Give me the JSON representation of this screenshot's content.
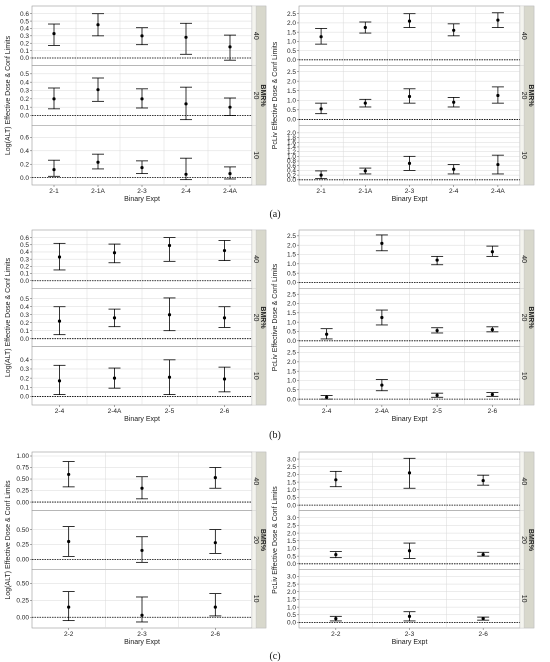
{
  "chart_data": [
    {
      "type": "scatter",
      "panel": "a-left",
      "xlabel": "Binary Expt",
      "ylabel": "Log(ALT) Effective Dose & Conf Limits",
      "strip_title": "BMR%",
      "categories": [
        "2-1",
        "2-1A",
        "2-3",
        "2-4",
        "2-4A"
      ],
      "facets": [
        {
          "label": "40",
          "ylim": [
            -0.05,
            0.65
          ],
          "ticks": [
            "0.0",
            "0.1",
            "0.2",
            "0.3",
            "0.4",
            "0.5",
            "0.6"
          ],
          "points": [
            {
              "y": 0.33,
              "lo": 0.17,
              "hi": 0.46
            },
            {
              "y": 0.45,
              "lo": 0.3,
              "hi": 0.6
            },
            {
              "y": 0.3,
              "lo": 0.18,
              "hi": 0.41
            },
            {
              "y": 0.28,
              "lo": 0.05,
              "hi": 0.47
            },
            {
              "y": 0.15,
              "lo": -0.03,
              "hi": 0.31
            }
          ]
        },
        {
          "label": "20",
          "ylim": [
            -0.07,
            0.55
          ],
          "ticks": [
            "0.0",
            "0.1",
            "0.2",
            "0.3",
            "0.4",
            "0.5"
          ],
          "points": [
            {
              "y": 0.2,
              "lo": 0.08,
              "hi": 0.33
            },
            {
              "y": 0.31,
              "lo": 0.17,
              "hi": 0.45
            },
            {
              "y": 0.2,
              "lo": 0.09,
              "hi": 0.32
            },
            {
              "y": 0.14,
              "lo": -0.05,
              "hi": 0.34
            },
            {
              "y": 0.1,
              "lo": 0.0,
              "hi": 0.21
            }
          ]
        },
        {
          "label": "10",
          "ylim": [
            -0.05,
            0.72
          ],
          "ticks": [
            "0.0",
            "0.2",
            "0.4",
            "0.6"
          ],
          "points": [
            {
              "y": 0.12,
              "lo": 0.02,
              "hi": 0.26
            },
            {
              "y": 0.23,
              "lo": 0.13,
              "hi": 0.35
            },
            {
              "y": 0.15,
              "lo": 0.06,
              "hi": 0.25
            },
            {
              "y": 0.05,
              "lo": -0.03,
              "hi": 0.29
            },
            {
              "y": 0.06,
              "lo": -0.02,
              "hi": 0.16
            }
          ]
        }
      ]
    },
    {
      "type": "scatter",
      "panel": "a-right",
      "xlabel": "Binary Expt",
      "ylabel": "PcLiv Effective Dose & Conf Limits",
      "strip_title": "BMR%",
      "categories": [
        "2-1",
        "2-1A",
        "2-3",
        "2-4",
        "2-4A"
      ],
      "facets": [
        {
          "label": "40",
          "ylim": [
            -0.1,
            2.7
          ],
          "ticks": [
            "0.0",
            "0.5",
            "1.0",
            "1.5",
            "2.0",
            "2.5"
          ],
          "points": [
            {
              "y": 1.25,
              "lo": 0.85,
              "hi": 1.7
            },
            {
              "y": 1.75,
              "lo": 1.45,
              "hi": 2.05
            },
            {
              "y": 2.1,
              "lo": 1.75,
              "hi": 2.5
            },
            {
              "y": 1.6,
              "lo": 1.3,
              "hi": 1.95
            },
            {
              "y": 2.15,
              "lo": 1.75,
              "hi": 2.55
            }
          ]
        },
        {
          "label": "20",
          "ylim": [
            -0.1,
            2.6
          ],
          "ticks": [
            "0.0",
            "0.5",
            "1.0",
            "1.5",
            "2.0",
            "2.5"
          ],
          "points": [
            {
              "y": 0.55,
              "lo": 0.3,
              "hi": 0.85
            },
            {
              "y": 0.85,
              "lo": 0.65,
              "hi": 1.05
            },
            {
              "y": 1.2,
              "lo": 0.85,
              "hi": 1.6
            },
            {
              "y": 0.9,
              "lo": 0.65,
              "hi": 1.15
            },
            {
              "y": 1.25,
              "lo": 0.85,
              "hi": 1.7
            }
          ]
        },
        {
          "label": "10",
          "ylim": [
            -0.05,
            2.15
          ],
          "ticks": [
            "0.0",
            "0.2",
            "0.4",
            "0.6",
            "0.8",
            "1.0",
            "1.2",
            "1.4",
            "1.6",
            "1.8",
            "2.0"
          ],
          "points": [
            {
              "y": 0.2,
              "lo": 0.05,
              "hi": 0.38
            },
            {
              "y": 0.38,
              "lo": 0.25,
              "hi": 0.5
            },
            {
              "y": 0.7,
              "lo": 0.4,
              "hi": 1.0
            },
            {
              "y": 0.45,
              "lo": 0.25,
              "hi": 0.65
            },
            {
              "y": 0.65,
              "lo": 0.25,
              "hi": 1.05
            }
          ]
        }
      ]
    },
    {
      "type": "scatter",
      "panel": "b-left",
      "xlabel": "Binary Expt",
      "ylabel": "Log(ALT) Effective Dose & Conf Limits",
      "strip_title": "BMR%",
      "categories": [
        "2-4",
        "2-4A",
        "2-5",
        "2-6"
      ],
      "facets": [
        {
          "label": "40",
          "ylim": [
            -0.05,
            0.65
          ],
          "ticks": [
            "0.0",
            "0.1",
            "0.2",
            "0.3",
            "0.4",
            "0.5",
            "0.6"
          ],
          "points": [
            {
              "y": 0.33,
              "lo": 0.15,
              "hi": 0.52
            },
            {
              "y": 0.39,
              "lo": 0.25,
              "hi": 0.51
            },
            {
              "y": 0.49,
              "lo": 0.27,
              "hi": 0.6
            },
            {
              "y": 0.42,
              "lo": 0.28,
              "hi": 0.56
            }
          ]
        },
        {
          "label": "20",
          "ylim": [
            -0.05,
            0.58
          ],
          "ticks": [
            "0.0",
            "0.1",
            "0.2",
            "0.3",
            "0.4",
            "0.5"
          ],
          "points": [
            {
              "y": 0.22,
              "lo": 0.05,
              "hi": 0.4
            },
            {
              "y": 0.26,
              "lo": 0.15,
              "hi": 0.37
            },
            {
              "y": 0.3,
              "lo": 0.1,
              "hi": 0.51
            },
            {
              "y": 0.26,
              "lo": 0.14,
              "hi": 0.4
            }
          ]
        },
        {
          "label": "10",
          "ylim": [
            -0.05,
            0.5
          ],
          "ticks": [
            "0.0",
            "0.1",
            "0.2",
            "0.3",
            "0.4"
          ],
          "points": [
            {
              "y": 0.17,
              "lo": 0.02,
              "hi": 0.34
            },
            {
              "y": 0.2,
              "lo": 0.09,
              "hi": 0.31
            },
            {
              "y": 0.21,
              "lo": 0.02,
              "hi": 0.4
            },
            {
              "y": 0.19,
              "lo": 0.05,
              "hi": 0.32
            }
          ]
        }
      ]
    },
    {
      "type": "scatter",
      "panel": "b-right",
      "xlabel": "Binary Expt",
      "ylabel": "PcLiv Effective Dose & Conf Limits",
      "strip_title": "BMR%",
      "categories": [
        "2-4",
        "2-4A",
        "2-5",
        "2-6"
      ],
      "facets": [
        {
          "label": "40",
          "ylim": [
            -0.1,
            2.6
          ],
          "ticks": [
            "0.0",
            "0.5",
            "1.0",
            "1.5",
            "2.0",
            "2.5"
          ],
          "points": [
            {
              "y": null,
              "lo": null,
              "hi": null
            },
            {
              "y": 2.1,
              "lo": 1.7,
              "hi": 2.55
            },
            {
              "y": 1.2,
              "lo": 0.95,
              "hi": 1.4
            },
            {
              "y": 1.65,
              "lo": 1.4,
              "hi": 1.95
            }
          ]
        },
        {
          "label": "20",
          "ylim": [
            -0.1,
            2.6
          ],
          "ticks": [
            "0.0",
            "0.5",
            "1.0",
            "1.5",
            "2.0",
            "2.5"
          ],
          "points": [
            {
              "y": 0.35,
              "lo": 0.1,
              "hi": 0.65
            },
            {
              "y": 1.25,
              "lo": 0.85,
              "hi": 1.65
            },
            {
              "y": 0.55,
              "lo": 0.42,
              "hi": 0.7
            },
            {
              "y": 0.6,
              "lo": 0.48,
              "hi": 0.75
            }
          ]
        },
        {
          "label": "10",
          "ylim": [
            -0.1,
            2.6
          ],
          "ticks": [
            "0.0",
            "0.5",
            "1.0",
            "1.5",
            "2.0",
            "2.5"
          ],
          "points": [
            {
              "y": 0.1,
              "lo": 0.0,
              "hi": 0.2
            },
            {
              "y": 0.75,
              "lo": 0.45,
              "hi": 1.05
            },
            {
              "y": 0.2,
              "lo": 0.1,
              "hi": 0.32
            },
            {
              "y": 0.25,
              "lo": 0.15,
              "hi": 0.35
            }
          ]
        }
      ]
    },
    {
      "type": "scatter",
      "panel": "c-left",
      "xlabel": "Binary Expt",
      "ylabel": "Log(ALT) Effective Dose & Conf Limits",
      "strip_title": "BMR%",
      "categories": [
        "2-2",
        "2-3",
        "2-6"
      ],
      "facets": [
        {
          "label": "40",
          "ylim": [
            -0.1,
            1.0
          ],
          "ticks": [
            "0.00",
            "0.25",
            "0.50",
            "0.75",
            "1.00"
          ],
          "points": [
            {
              "y": 0.6,
              "lo": 0.33,
              "hi": 0.88
            },
            {
              "y": 0.3,
              "lo": 0.07,
              "hi": 0.55
            },
            {
              "y": 0.53,
              "lo": 0.3,
              "hi": 0.75
            }
          ]
        },
        {
          "label": "20",
          "ylim": [
            -0.1,
            0.75
          ],
          "ticks": [
            "0.00",
            "0.25",
            "0.50"
          ],
          "points": [
            {
              "y": 0.3,
              "lo": 0.05,
              "hi": 0.55
            },
            {
              "y": 0.15,
              "lo": -0.05,
              "hi": 0.38
            },
            {
              "y": 0.28,
              "lo": 0.1,
              "hi": 0.5
            }
          ]
        },
        {
          "label": "10",
          "ylim": [
            -0.1,
            0.65
          ],
          "ticks": [
            "0.00",
            "0.25",
            "0.50"
          ],
          "points": [
            {
              "y": 0.15,
              "lo": -0.05,
              "hi": 0.38
            },
            {
              "y": 0.03,
              "lo": -0.07,
              "hi": 0.3
            },
            {
              "y": 0.15,
              "lo": 0.02,
              "hi": 0.35
            }
          ]
        }
      ]
    },
    {
      "type": "scatter",
      "panel": "c-right",
      "xlabel": "Binary Expt",
      "ylabel": "PcLiv Effective Dose & Conf Limits",
      "strip_title": "BMR%",
      "categories": [
        "2-2",
        "2-3",
        "2-6"
      ],
      "facets": [
        {
          "label": "40",
          "ylim": [
            -0.1,
            3.2
          ],
          "ticks": [
            "0.0",
            "0.5",
            "1.0",
            "1.5",
            "2.0",
            "2.5",
            "3.0"
          ],
          "points": [
            {
              "y": 1.65,
              "lo": 1.2,
              "hi": 2.2
            },
            {
              "y": 2.1,
              "lo": 1.1,
              "hi": 3.05
            },
            {
              "y": 1.6,
              "lo": 1.3,
              "hi": 1.95
            }
          ]
        },
        {
          "label": "20",
          "ylim": [
            -0.1,
            3.2
          ],
          "ticks": [
            "0.0",
            "0.5",
            "1.0",
            "1.5",
            "2.0",
            "2.5",
            "3.0"
          ],
          "points": [
            {
              "y": 0.6,
              "lo": 0.4,
              "hi": 0.8
            },
            {
              "y": 0.85,
              "lo": 0.35,
              "hi": 1.35
            },
            {
              "y": 0.6,
              "lo": 0.5,
              "hi": 0.75
            }
          ]
        },
        {
          "label": "10",
          "ylim": [
            -0.1,
            3.2
          ],
          "ticks": [
            "0.0",
            "0.5",
            "1.0",
            "1.5",
            "2.0",
            "2.5",
            "3.0"
          ],
          "points": [
            {
              "y": 0.25,
              "lo": 0.1,
              "hi": 0.4
            },
            {
              "y": 0.4,
              "lo": 0.1,
              "hi": 0.7
            },
            {
              "y": 0.25,
              "lo": 0.15,
              "hi": 0.35
            }
          ]
        }
      ]
    }
  ],
  "captions": [
    "(a)",
    "(b)",
    "(c)"
  ],
  "colors": {
    "grid": "#d9d9d9",
    "strip": "#d8d8cc",
    "zero_line": "#000000",
    "marks": "#000000"
  }
}
